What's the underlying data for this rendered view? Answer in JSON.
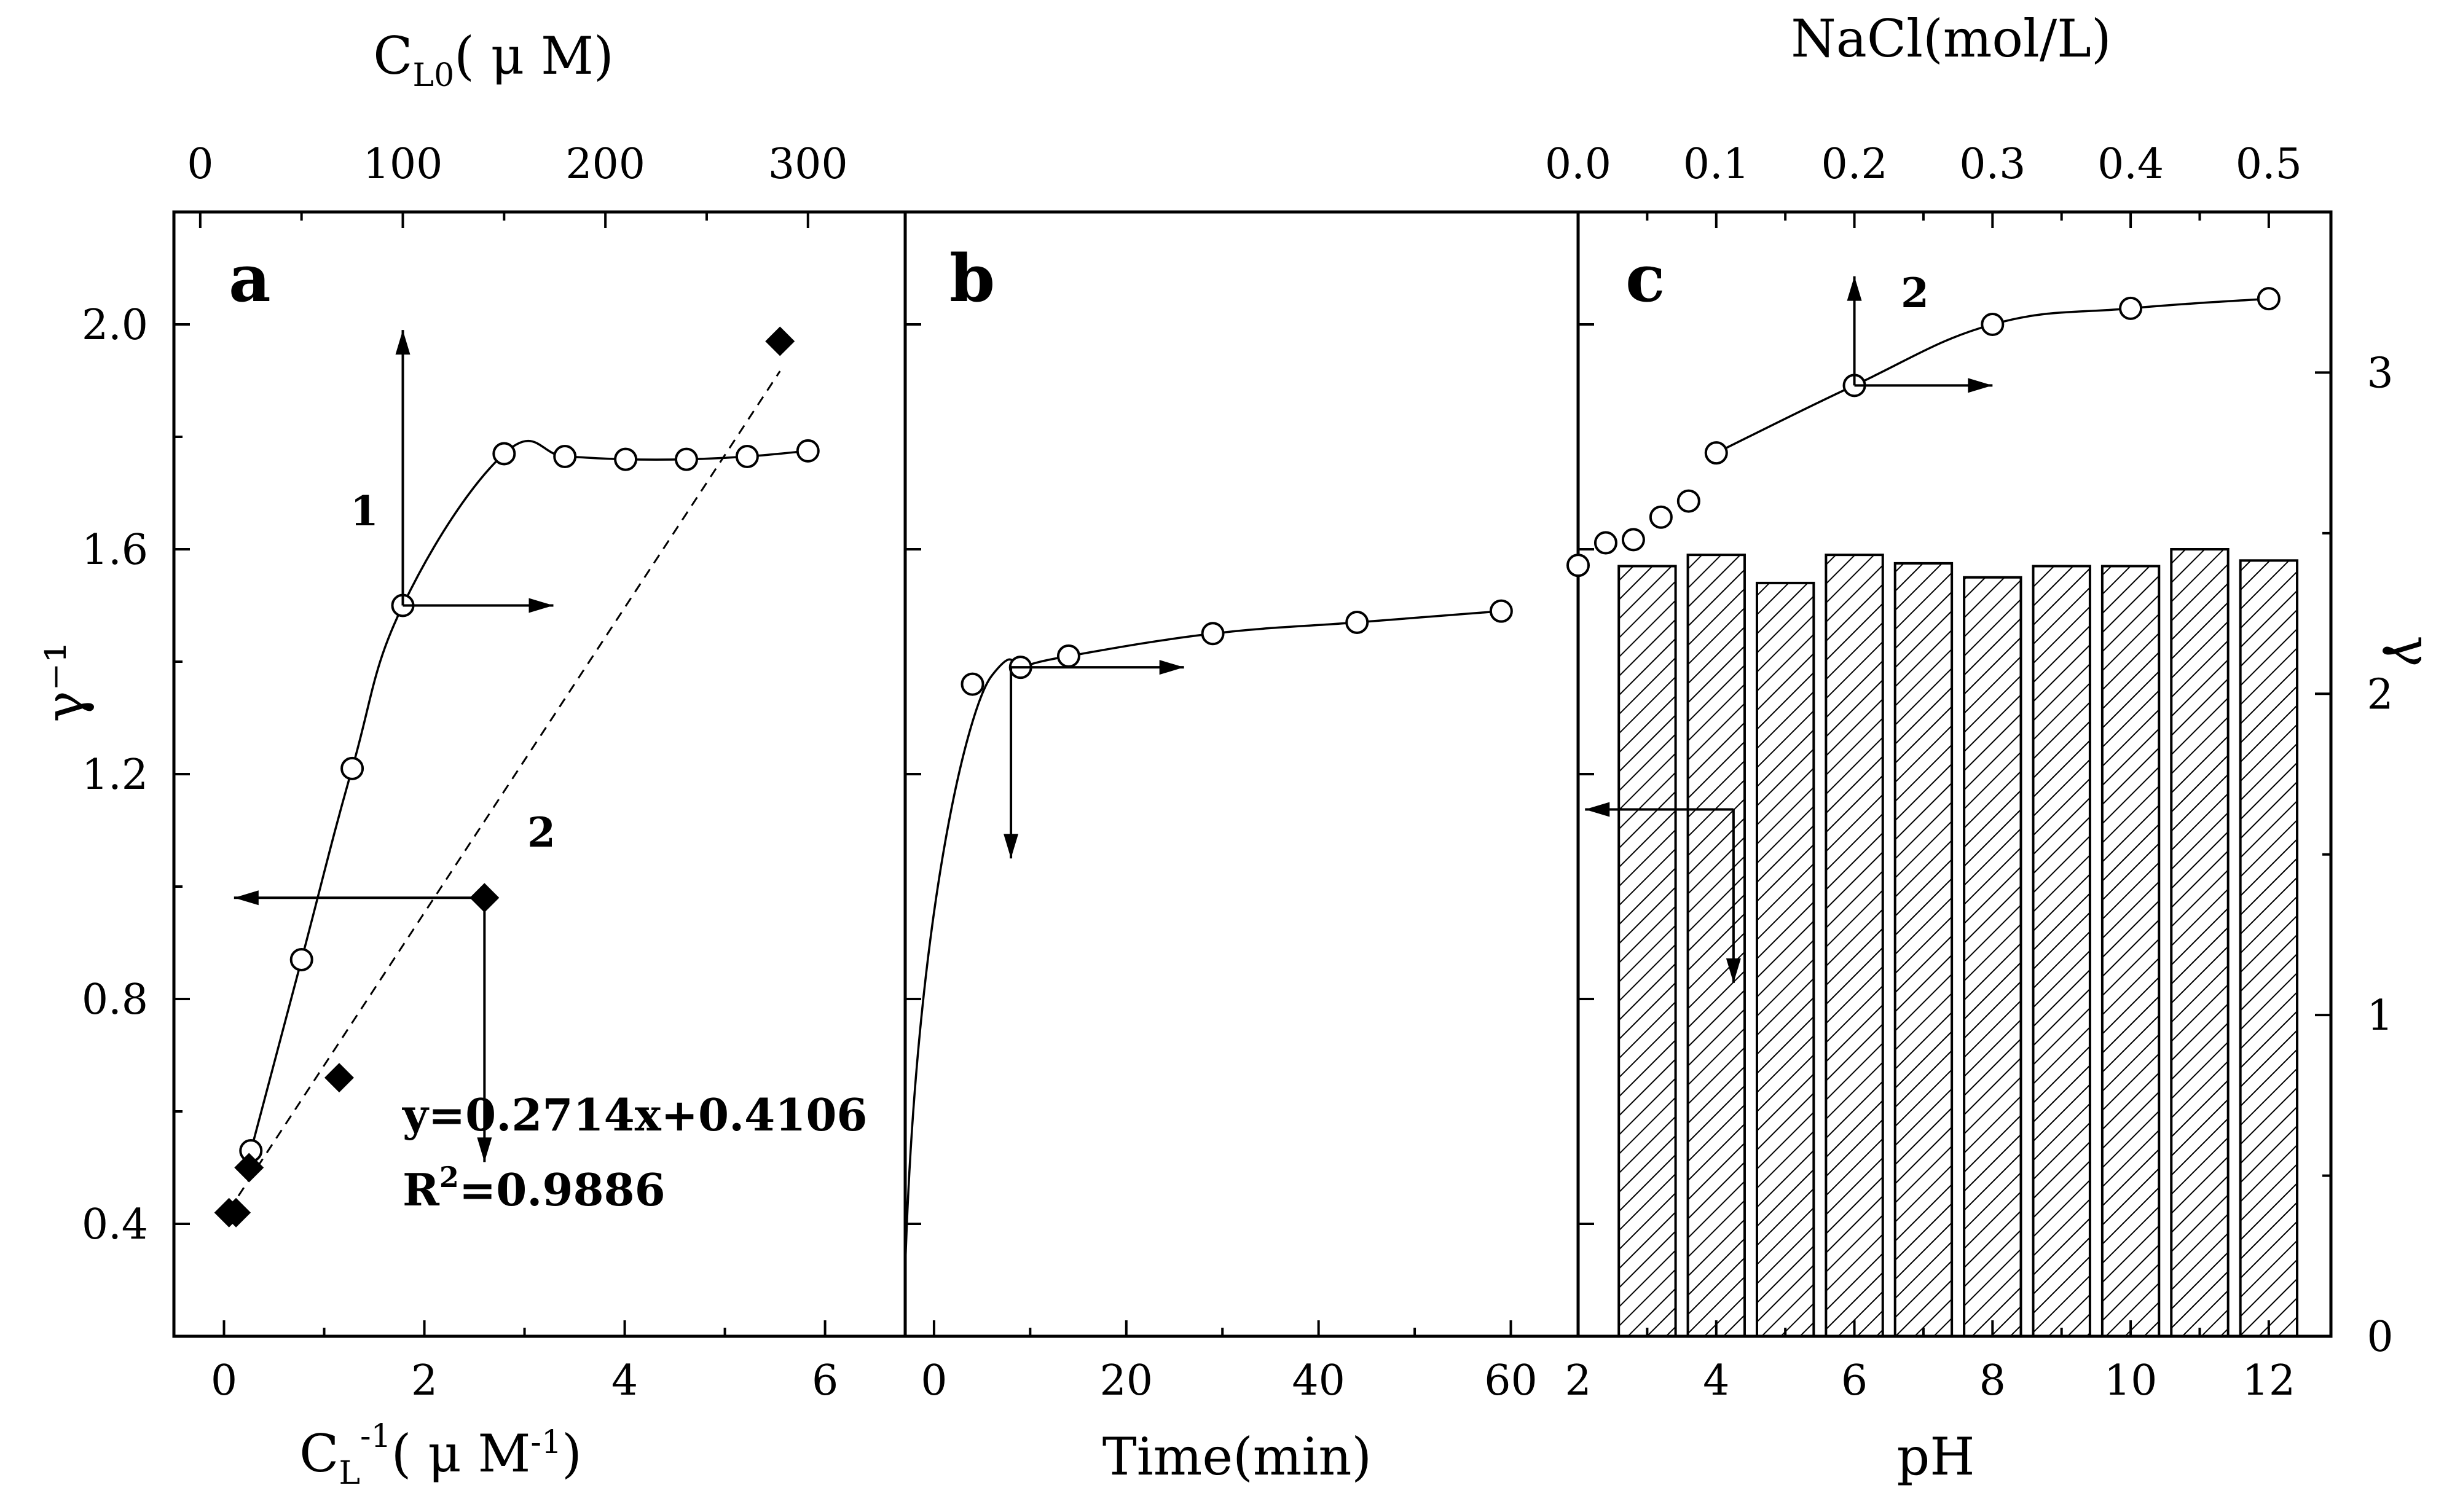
{
  "figure": {
    "colors": {
      "ink": "#000000",
      "paper": "#ffffff"
    },
    "shared_ylabel_left": "γ⁻¹",
    "shared_ylabel_right": "γ"
  },
  "chart_data": [
    {
      "id": "a",
      "panel_label": "a",
      "type": "line+scatter",
      "title": "",
      "xlabel": "C_L^-1(μM^-1)",
      "xlabel_main": "C",
      "xlabel_sub": "L",
      "xlabel_sup": "-1",
      "xlabel_rest": "( μ M",
      "xlabel_sup2": "-1",
      "xlabel_close": ")",
      "xlim": [
        -0.5,
        6.8
      ],
      "xticks": [
        0,
        2,
        4,
        6
      ],
      "xtick_labels": [
        "0",
        "2",
        "4",
        "6"
      ],
      "x2label": "C_L0(μM)",
      "x2label_main": "C",
      "x2label_sub": "L0",
      "x2label_rest": "( μ M)",
      "x2lim": [
        -13,
        348
      ],
      "x2ticks": [
        0,
        100,
        200,
        300
      ],
      "x2tick_labels": [
        "0",
        "100",
        "200",
        "300"
      ],
      "ylabel": "γ^-1",
      "ylim": [
        0.2,
        2.2
      ],
      "yticks": [
        0.4,
        0.8,
        1.2,
        1.6,
        2.0
      ],
      "ytick_labels": [
        "0.4",
        "0.8",
        "1.2",
        "1.6",
        "2.0"
      ],
      "series": [
        {
          "name": "1",
          "label": "1",
          "axis": "top-x",
          "marker": "open-circle",
          "line": "smooth-solid",
          "x": [
            25,
            50,
            75,
            100,
            150,
            180,
            210,
            240,
            270,
            300
          ],
          "y": [
            0.53,
            0.87,
            1.21,
            1.5,
            1.77,
            1.765,
            1.76,
            1.76,
            1.765,
            1.775
          ]
        },
        {
          "name": "2",
          "label": "2",
          "axis": "bottom-x",
          "marker": "filled-diamond",
          "line": "dashed-fit",
          "x": [
            0.05,
            0.12,
            0.25,
            1.15,
            2.6,
            5.55
          ],
          "y": [
            0.42,
            0.42,
            0.5,
            0.66,
            0.98,
            1.97
          ]
        }
      ],
      "fit": {
        "slope": 0.2714,
        "intercept": 0.4106,
        "x_range": [
          0.05,
          5.55
        ]
      },
      "annotations": {
        "equation": "y=0.2714x+0.4106",
        "r2_prefix": "R",
        "r2_sup": "2",
        "r2_suffix": "=0.9886"
      }
    },
    {
      "id": "b",
      "panel_label": "b",
      "type": "line+scatter",
      "title": "",
      "xlabel": "Time(min)",
      "xlim": [
        -3,
        67
      ],
      "xticks": [
        0,
        20,
        40,
        60
      ],
      "xtick_labels": [
        "0",
        "20",
        "40",
        "60"
      ],
      "ylim": [
        0.2,
        2.2
      ],
      "series": [
        {
          "name": "time",
          "marker": "open-circle",
          "line": "smooth-solid",
          "x": [
            4,
            9,
            14,
            29,
            44,
            59
          ],
          "y": [
            1.36,
            1.39,
            1.41,
            1.45,
            1.47,
            1.49
          ],
          "curve_start": {
            "x": -3,
            "y": 0.32
          }
        }
      ]
    },
    {
      "id": "c",
      "panel_label": "c",
      "type": "bar+line",
      "title": "",
      "xlabel": "pH",
      "xlim": [
        2,
        12.9
      ],
      "xticks": [
        2,
        4,
        6,
        8,
        10,
        12
      ],
      "xtick_labels": [
        "2",
        "4",
        "6",
        "8",
        "10",
        "12"
      ],
      "x2label": "NaCl(mol/L)",
      "x2lim": [
        0.0,
        0.545
      ],
      "x2ticks": [
        0.0,
        0.1,
        0.2,
        0.3,
        0.4,
        0.5
      ],
      "x2tick_labels": [
        "0.0",
        "0.1",
        "0.2",
        "0.3",
        "0.4",
        "0.5"
      ],
      "ylim_left": [
        0.2,
        2.2
      ],
      "ylabel_right": "γ",
      "ylim_right": [
        0,
        3.5
      ],
      "yticks_right": [
        0,
        1,
        2,
        3
      ],
      "ytick_labels_right": [
        "0",
        "1",
        "2",
        "3"
      ],
      "bars": {
        "name": "pH",
        "axis": "left",
        "pattern": "hatched",
        "x": [
          3,
          4,
          5,
          6,
          7,
          8,
          9,
          10,
          11,
          12
        ],
        "y": [
          1.57,
          1.59,
          1.54,
          1.59,
          1.575,
          1.55,
          1.57,
          1.57,
          1.6,
          1.58
        ]
      },
      "series": [
        {
          "name": "2",
          "label": "2",
          "axis": "top-x-right-y",
          "marker": "open-circle",
          "line": "sparse-smooth",
          "x": [
            0.0,
            0.02,
            0.04,
            0.06,
            0.08,
            0.1,
            0.2,
            0.3,
            0.4,
            0.5
          ],
          "y": [
            2.4,
            2.47,
            2.48,
            2.55,
            2.6,
            2.75,
            2.96,
            3.15,
            3.2,
            3.23
          ]
        }
      ]
    }
  ]
}
